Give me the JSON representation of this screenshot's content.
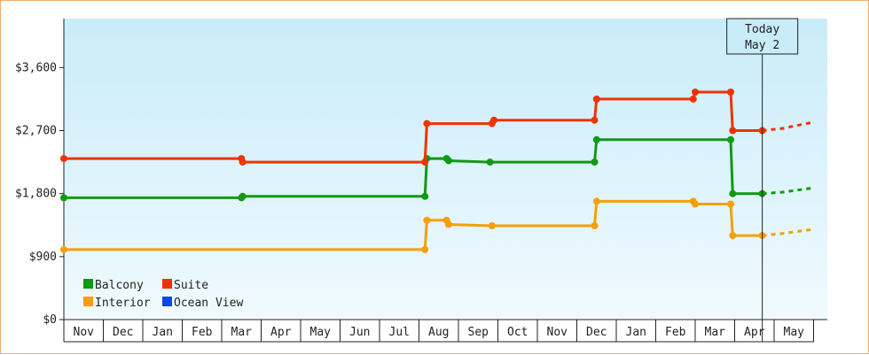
{
  "chart_data": {
    "type": "line",
    "step": true,
    "x_unit": "month",
    "ylim": [
      0,
      4300
    ],
    "yticks": [
      {
        "value": 0,
        "label": "$0"
      },
      {
        "value": 900,
        "label": "$900"
      },
      {
        "value": 1800,
        "label": "$1,800"
      },
      {
        "value": 2700,
        "label": "$2,700"
      },
      {
        "value": 3600,
        "label": "$3,600"
      }
    ],
    "xlim": [
      0,
      19
    ],
    "months": [
      "Nov",
      "Dec",
      "Jan",
      "Feb",
      "Mar",
      "Apr",
      "May",
      "Jun",
      "Jul",
      "Aug",
      "Sep",
      "Oct",
      "Nov",
      "Dec",
      "Jan",
      "Feb",
      "Mar",
      "Apr",
      "May"
    ],
    "today": {
      "line1": "Today",
      "line2": "May 2",
      "x": 17.7
    },
    "grid": false,
    "legend_position": "bottom-left",
    "series": [
      {
        "name": "Balcony",
        "color": "#119911",
        "points": [
          [
            0,
            1740
          ],
          [
            4.5,
            1740
          ],
          [
            4.53,
            1760
          ],
          [
            9.15,
            1760
          ],
          [
            9.2,
            2300
          ],
          [
            9.7,
            2300
          ],
          [
            9.75,
            2270
          ],
          [
            10.8,
            2250
          ],
          [
            13.45,
            2250
          ],
          [
            13.5,
            2570
          ],
          [
            16.9,
            2570
          ],
          [
            16.95,
            1800
          ],
          [
            17.7,
            1800
          ]
        ],
        "projection": [
          [
            17.7,
            1800
          ],
          [
            18.2,
            1820
          ],
          [
            19,
            1880
          ]
        ]
      },
      {
        "name": "Suite",
        "color": "#ee3300",
        "points": [
          [
            0,
            2300
          ],
          [
            4.5,
            2300
          ],
          [
            4.53,
            2250
          ],
          [
            9.15,
            2250
          ],
          [
            9.2,
            2800
          ],
          [
            10.85,
            2800
          ],
          [
            10.9,
            2850
          ],
          [
            13.45,
            2850
          ],
          [
            13.5,
            3150
          ],
          [
            15.95,
            3150
          ],
          [
            16.0,
            3250
          ],
          [
            16.9,
            3250
          ],
          [
            16.95,
            2700
          ],
          [
            17.7,
            2700
          ]
        ],
        "projection": [
          [
            17.7,
            2700
          ],
          [
            18.2,
            2730
          ],
          [
            19,
            2820
          ]
        ]
      },
      {
        "name": "Interior",
        "color": "#f4a008",
        "points": [
          [
            0,
            1000
          ],
          [
            9.15,
            1000
          ],
          [
            9.2,
            1420
          ],
          [
            9.7,
            1420
          ],
          [
            9.75,
            1360
          ],
          [
            10.85,
            1340
          ],
          [
            13.45,
            1340
          ],
          [
            13.5,
            1690
          ],
          [
            15.95,
            1690
          ],
          [
            16.0,
            1650
          ],
          [
            16.9,
            1650
          ],
          [
            16.95,
            1200
          ],
          [
            17.7,
            1200
          ]
        ],
        "projection": [
          [
            17.7,
            1200
          ],
          [
            18.2,
            1230
          ],
          [
            19,
            1290
          ]
        ]
      },
      {
        "name": "Ocean View",
        "color": "#1144ee",
        "points": [],
        "projection": []
      }
    ]
  }
}
